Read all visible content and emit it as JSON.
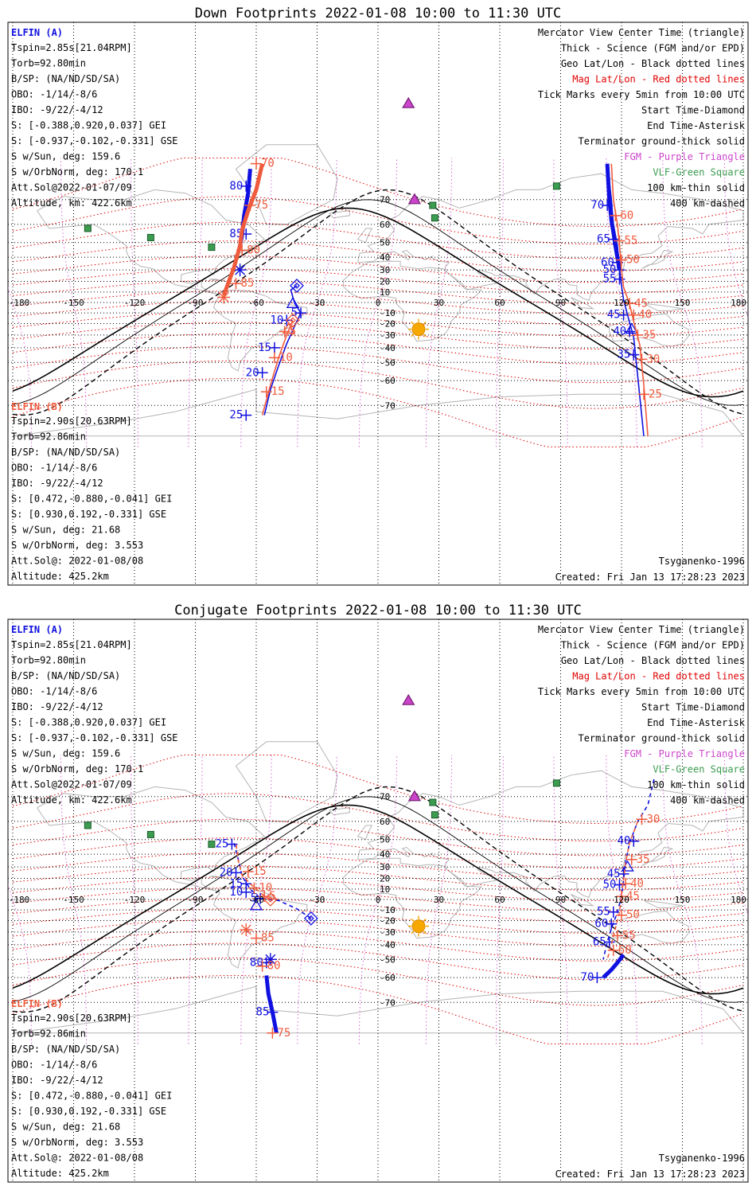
{
  "colors": {
    "elfin_a": "#1010e0",
    "elfin_b": "#f05a3c",
    "geo_grid": "#000000",
    "mag_grid": "#e00000",
    "fgm_sites": "#cc44cc",
    "vlf_sites": "#3c9c50",
    "coast": "#b4b4b4"
  },
  "header": {
    "a_title": "ELFIN (A)",
    "b_title": "ELFIN (B)"
  },
  "info_a": [
    "Tspin=2.85s[21.04RPM]",
    "Torb=92.80min",
    "B/SP: (NA/ND/SD/SA)",
    "OBO: -1/14/-8/6",
    "IBO: -9/22/-4/12",
    "S: [-0.388,0.920,0.037] GEI",
    "S: [-0.937,-0.102,-0.331] GSE",
    "S w/Sun, deg: 159.6",
    "S w/OrbNorm, deg: 170.1",
    "Att.Sol@2022-01-07/09",
    "Altitude, km: 422.6km"
  ],
  "info_b": [
    "Tspin=2.90s[20.63RPM]",
    "Torb=92.86min",
    "B/SP: (NA/ND/SD/SA)",
    "OBO: -1/14/-8/6",
    "IBO: -9/22/-4/12",
    "S: [0.472,-0.880,-0.041] GEI",
    "S: [0.930,0.192,-0.331] GSE",
    "S w/Sun, deg: 21.68",
    "S w/OrbNorm, deg: 3.553",
    "Att.Sol@: 2022-01-08/08",
    "Altitude: 425.2km"
  ],
  "legend": [
    {
      "text": "Mercator View Center Time (triangle)",
      "color": "#000000"
    },
    {
      "text": "Thick - Science (FGM and/or EPD)",
      "color": "#000000"
    },
    {
      "text": "Geo Lat/Lon - Black dotted lines",
      "color": "#000000"
    },
    {
      "text": "Mag Lat/Lon - Red dotted lines",
      "color": "#e00000"
    },
    {
      "text": "Tick Marks every 5min from 10:00 UTC",
      "color": "#000000"
    },
    {
      "text": "Start Time-Diamond",
      "color": "#000000"
    },
    {
      "text": "End Time-Asterisk",
      "color": "#000000"
    },
    {
      "text": "Terminator ground-thick solid",
      "color": "#000000"
    },
    {
      "text": "FGM - Purple Triangle",
      "color": "#cc44cc"
    },
    {
      "text": "VLF-Green Square",
      "color": "#3c9c50"
    },
    {
      "text": "100 km-thin solid",
      "color": "#000000"
    },
    {
      "text": "400 km-dashed",
      "color": "#000000"
    }
  ],
  "footer": {
    "model": "Tsyganenko-1996",
    "created": "Created: Fri Jan 13 17:28:23 2023"
  },
  "chart_data": [
    {
      "type": "line",
      "title": "Down Footprints 2022-01-08 10:00 to 11:30 UTC",
      "xlabel": "",
      "ylabel": "",
      "xlim": [
        -180,
        180
      ],
      "ylim": [
        -80,
        80
      ],
      "x_ticks": [
        -180,
        -150,
        -120,
        -90,
        -60,
        -30,
        0,
        30,
        60,
        90,
        120,
        150,
        180
      ],
      "y_ticks": [
        -70,
        -60,
        -50,
        -40,
        -30,
        -20,
        -10,
        0,
        10,
        20,
        30,
        40,
        50,
        60,
        70
      ],
      "grid": true,
      "series": [
        {
          "name": "ELFIN (A)",
          "line": [
            [
              -40,
              16
            ],
            [
              -43,
              12
            ],
            [
              -41,
              -1
            ],
            [
              -38,
              -10
            ],
            [
              -41,
              -22
            ],
            [
              -45,
              -37
            ],
            [
              -49,
              -52
            ],
            [
              -53,
              -64
            ],
            [
              -56,
              -73
            ]
          ],
          "science": [
            [
              -63,
              78
            ],
            [
              -64,
              72
            ],
            [
              -66,
              64
            ],
            [
              -67,
              54
            ],
            [
              -68,
              48
            ]
          ],
          "ticks": [
            {
              "lon": -38,
              "lat": -10,
              "label": "5"
            },
            {
              "lon": -45,
              "lat": -17,
              "label": "10"
            },
            {
              "lon": -51,
              "lat": -40,
              "label": "15"
            },
            {
              "lon": -57,
              "lat": -56,
              "label": "20"
            },
            {
              "lon": -65,
              "lat": -73,
              "label": "25"
            },
            {
              "lon": -65,
              "lat": 74,
              "label": "80"
            },
            {
              "lon": -65,
              "lat": 55,
              "label": "85"
            }
          ],
          "start": [
            -40,
            16
          ],
          "end": [
            -68,
            30
          ],
          "center": [
            -42,
            -1
          ]
        },
        {
          "name": "ELFIN (B)",
          "line": [
            [
              -42,
              -17
            ],
            [
              -45,
              -30
            ],
            [
              -49,
              -47
            ],
            [
              -53,
              -62
            ],
            [
              -57,
              -73
            ]
          ],
          "science": [
            [
              -57,
              79
            ],
            [
              -60,
              73
            ],
            [
              -64,
              66
            ],
            [
              -67,
              57
            ],
            [
              -68,
              48
            ],
            [
              -71,
              32
            ],
            [
              -76,
              7
            ]
          ],
          "ticks": [
            {
              "lon": -46,
              "lat": -27,
              "label": "5"
            },
            {
              "lon": -51,
              "lat": -47,
              "label": "10"
            },
            {
              "lon": -55,
              "lat": -65,
              "label": "15"
            },
            {
              "lon": -60,
              "lat": 79,
              "label": "70"
            },
            {
              "lon": -63,
              "lat": 68,
              "label": "75"
            },
            {
              "lon": -67,
              "lat": 45,
              "label": "80"
            },
            {
              "lon": -70,
              "lat": 18,
              "label": "85"
            }
          ],
          "start": [
            -42,
            -17
          ],
          "end": [
            -76,
            5
          ],
          "center": [
            -44,
            -25
          ]
        },
        {
          "name": "ELFIN (A)",
          "line": [
            [
              113,
              79
            ],
            [
              115,
              70
            ],
            [
              116,
              60
            ],
            [
              118,
              48
            ],
            [
              119,
              31
            ],
            [
              120,
              16
            ],
            [
              121,
              3
            ],
            [
              123,
              -12
            ],
            [
              126,
              -32
            ],
            [
              128,
              -58
            ],
            [
              131,
              -78
            ]
          ],
          "science": [
            [
              113,
              79
            ],
            [
              114,
              70
            ],
            [
              115,
              62
            ],
            [
              116,
              56
            ],
            [
              117,
              48
            ],
            [
              119,
              30
            ]
          ],
          "ticks": [
            {
              "lon": 119,
              "lat": 30,
              "label": "50"
            },
            {
              "lon": 121,
              "lat": -12,
              "label": "45"
            },
            {
              "lon": 124,
              "lat": -27,
              "label": "40"
            },
            {
              "lon": 126,
              "lat": -45,
              "label": "35"
            },
            {
              "lon": 113,
              "lat": 68,
              "label": "70"
            },
            {
              "lon": 116,
              "lat": 52,
              "label": "65"
            },
            {
              "lon": 118,
              "lat": 36,
              "label": "60"
            },
            {
              "lon": 119,
              "lat": 22,
              "label": "55"
            }
          ],
          "start": null,
          "end": null,
          "center": [
            125,
            -25
          ]
        },
        {
          "name": "ELFIN (B)",
          "line": [
            [
              115,
              79
            ],
            [
              116,
              70
            ],
            [
              118,
              60
            ],
            [
              119,
              48
            ],
            [
              120,
              30
            ],
            [
              121,
              15
            ],
            [
              124,
              -2
            ],
            [
              126,
              -18
            ],
            [
              129,
              -38
            ],
            [
              131,
              -62
            ],
            [
              133,
              -78
            ]
          ],
          "science": [],
          "ticks": [
            {
              "lon": 117,
              "lat": 64,
              "label": "60"
            },
            {
              "lon": 119,
              "lat": 51,
              "label": "55"
            },
            {
              "lon": 120,
              "lat": 38,
              "label": "50"
            },
            {
              "lon": 124,
              "lat": -1,
              "label": "45"
            },
            {
              "lon": 126,
              "lat": -12,
              "label": "40"
            },
            {
              "lon": 128,
              "lat": -30,
              "label": "35"
            },
            {
              "lon": 130,
              "lat": -48,
              "label": "30"
            },
            {
              "lon": 131,
              "lat": -66,
              "label": "25"
            }
          ],
          "start": null,
          "end": null,
          "center": null
        }
      ]
    },
    {
      "type": "line",
      "title": "Conjugate Footprints 2022-01-08 10:00 to 11:30 UTC",
      "xlabel": "",
      "ylabel": "",
      "xlim": [
        -180,
        180
      ],
      "ylim": [
        -80,
        80
      ],
      "x_ticks": [
        -180,
        -150,
        -120,
        -90,
        -60,
        -30,
        0,
        30,
        60,
        90,
        120,
        150,
        180
      ],
      "y_ticks": [
        -70,
        -60,
        -50,
        -40,
        -30,
        -20,
        -10,
        0,
        10,
        20,
        30,
        40,
        50,
        60,
        70
      ],
      "grid": true,
      "series": [
        {
          "name": "ELFIN (A)",
          "line": [
            [
              -33,
              -18
            ],
            [
              -40,
              -9
            ],
            [
              -49,
              -1
            ],
            [
              -58,
              1
            ],
            [
              -63,
              10
            ],
            [
              -67,
              22
            ],
            [
              -69,
              37
            ],
            [
              -71,
              48
            ]
          ],
          "science": [
            [
              -55,
              -59
            ],
            [
              -54,
              -67
            ],
            [
              -52,
              -73
            ],
            [
              -50,
              -78
            ]
          ],
          "ticks": [
            {
              "lon": -58,
              "lat": 1,
              "label": "5"
            },
            {
              "lon": -65,
              "lat": 7,
              "label": "10"
            },
            {
              "lon": -65,
              "lat": 15,
              "label": "15"
            },
            {
              "lon": -70,
              "lat": 25,
              "label": "20"
            },
            {
              "lon": -72,
              "lat": 47,
              "label": "25"
            },
            {
              "lon": -55,
              "lat": -52,
              "label": "80"
            },
            {
              "lon": -52,
              "lat": -73,
              "label": "85"
            }
          ],
          "start": [
            -33,
            -18
          ],
          "end": [
            -53,
            -50
          ],
          "center": [
            -60,
            -6
          ]
        },
        {
          "name": "ELFIN (B)",
          "line": [
            [
              -53,
              0
            ],
            [
              -57,
              5
            ],
            [
              -63,
              15
            ],
            [
              -67,
              23
            ],
            [
              -69,
              36
            ],
            [
              -70,
              48
            ]
          ],
          "science": [],
          "ticks": [
            {
              "lon": -56,
              "lat": 3,
              "label": "5"
            },
            {
              "lon": -61,
              "lat": 11,
              "label": "10"
            },
            {
              "lon": -64,
              "lat": 26,
              "label": "15"
            },
            {
              "lon": -60,
              "lat": -35,
              "label": "85"
            },
            {
              "lon": -57,
              "lat": -54,
              "label": "80"
            },
            {
              "lon": -52,
              "lat": -78,
              "label": "75"
            }
          ],
          "start": [
            -53,
            0
          ],
          "end": [
            -65,
            -28
          ],
          "center": null
        },
        {
          "name": "ELFIN (A)",
          "line": [
            [
              136,
              75
            ],
            [
              133,
              67
            ],
            [
              128,
              60
            ],
            [
              124,
              48
            ],
            [
              122,
              34
            ],
            [
              121,
              18
            ],
            [
              120,
              3
            ],
            [
              118,
              -12
            ],
            [
              115,
              -27
            ],
            [
              113,
              -38
            ],
            [
              111,
              -50
            ]
          ],
          "science": [
            [
              121,
              -47
            ],
            [
              118,
              -52
            ],
            [
              115,
              -56
            ],
            [
              111,
              -60
            ]
          ],
          "ticks": [
            {
              "lon": 126,
              "lat": 49,
              "label": "40"
            },
            {
              "lon": 121,
              "lat": 24,
              "label": "45"
            },
            {
              "lon": 119,
              "lat": 14,
              "label": "50"
            },
            {
              "lon": 116,
              "lat": -12,
              "label": "55"
            },
            {
              "lon": 115,
              "lat": -23,
              "label": "60"
            },
            {
              "lon": 114,
              "lat": -38,
              "label": "65"
            },
            {
              "lon": 108,
              "lat": -60,
              "label": "70"
            }
          ],
          "start": null,
          "end": null,
          "center": [
            123,
            30
          ]
        },
        {
          "name": "ELFIN (B)",
          "line": [
            [
              128,
              60
            ],
            [
              124,
              48
            ],
            [
              122,
              34
            ],
            [
              121,
              18
            ],
            [
              120,
              4
            ],
            [
              119,
              -12
            ],
            [
              117,
              -27
            ],
            [
              115,
              -40
            ],
            [
              113,
              -50
            ]
          ],
          "science": [],
          "ticks": [
            {
              "lon": 130,
              "lat": 61,
              "label": "30"
            },
            {
              "lon": 125,
              "lat": 36,
              "label": "35"
            },
            {
              "lon": 122,
              "lat": 15,
              "label": "40"
            },
            {
              "lon": 120,
              "lat": 3,
              "label": "45"
            },
            {
              "lon": 120,
              "lat": -15,
              "label": "50"
            },
            {
              "lon": 118,
              "lat": -33,
              "label": "55"
            },
            {
              "lon": 116,
              "lat": -44,
              "label": "60"
            }
          ],
          "start": null,
          "end": null,
          "center": null
        }
      ]
    }
  ]
}
